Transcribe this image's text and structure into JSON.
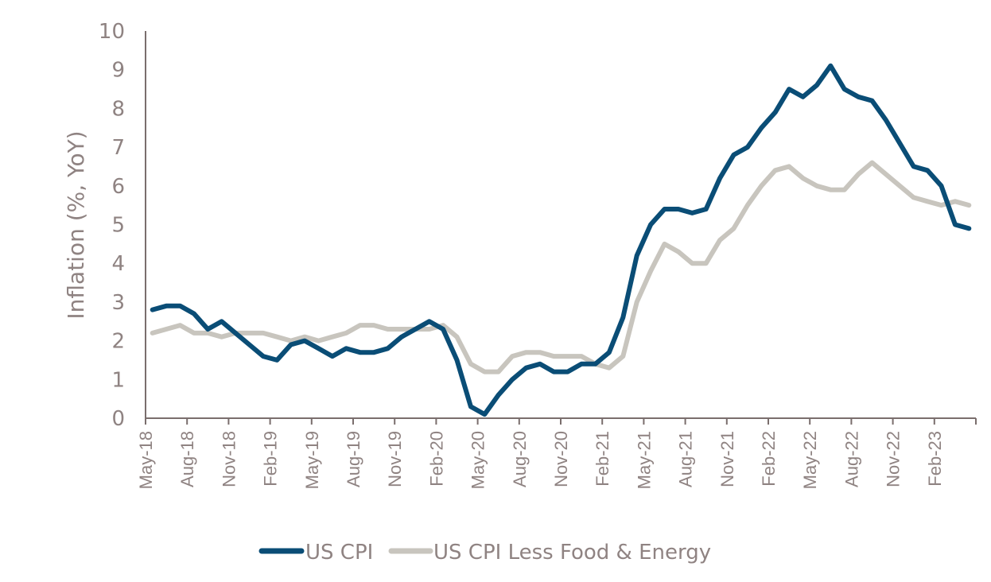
{
  "chart_data": {
    "type": "line",
    "title": "",
    "xlabel": "",
    "ylabel": "Inflation (%, YoY)",
    "ylim": [
      0,
      10
    ],
    "yticks": [
      0,
      1,
      2,
      3,
      4,
      5,
      6,
      7,
      8,
      9,
      10
    ],
    "grid": false,
    "legend_position": "bottom-center",
    "x_start": "May-18",
    "x_end": "May-23",
    "x_tick_interval_months": 3,
    "x_tick_labels": [
      "May-18",
      "Aug-18",
      "Nov-18",
      "Feb-19",
      "May-19",
      "Aug-19",
      "Nov-19",
      "Feb-20",
      "May-20",
      "Aug-20",
      "Nov-20",
      "Feb-21",
      "May-21",
      "Aug-21",
      "Nov-21",
      "Feb-22",
      "May-22",
      "Aug-22",
      "Nov-22",
      "Feb-23",
      ""
    ],
    "x": [
      "May-18",
      "Jun-18",
      "Jul-18",
      "Aug-18",
      "Sep-18",
      "Oct-18",
      "Nov-18",
      "Dec-18",
      "Jan-19",
      "Feb-19",
      "Mar-19",
      "Apr-19",
      "May-19",
      "Jun-19",
      "Jul-19",
      "Aug-19",
      "Sep-19",
      "Oct-19",
      "Nov-19",
      "Dec-19",
      "Jan-20",
      "Feb-20",
      "Mar-20",
      "Apr-20",
      "May-20",
      "Jun-20",
      "Jul-20",
      "Aug-20",
      "Sep-20",
      "Oct-20",
      "Nov-20",
      "Dec-20",
      "Jan-21",
      "Feb-21",
      "Mar-21",
      "Apr-21",
      "May-21",
      "Jun-21",
      "Jul-21",
      "Aug-21",
      "Sep-21",
      "Oct-21",
      "Nov-21",
      "Dec-21",
      "Jan-22",
      "Feb-22",
      "Mar-22",
      "Apr-22",
      "May-22",
      "Jun-22",
      "Jul-22",
      "Aug-22",
      "Sep-22",
      "Oct-22",
      "Nov-22",
      "Dec-22",
      "Jan-23",
      "Feb-23",
      "Mar-23",
      "Apr-23"
    ],
    "series": [
      {
        "name": "US CPI",
        "color": "#0a4d76",
        "values": [
          2.8,
          2.9,
          2.9,
          2.7,
          2.3,
          2.5,
          2.2,
          1.9,
          1.6,
          1.5,
          1.9,
          2.0,
          1.8,
          1.6,
          1.8,
          1.7,
          1.7,
          1.8,
          2.1,
          2.3,
          2.5,
          2.3,
          1.5,
          0.3,
          0.1,
          0.6,
          1.0,
          1.3,
          1.4,
          1.2,
          1.2,
          1.4,
          1.4,
          1.7,
          2.6,
          4.2,
          5.0,
          5.4,
          5.4,
          5.3,
          5.4,
          6.2,
          6.8,
          7.0,
          7.5,
          7.9,
          8.5,
          8.3,
          8.6,
          9.1,
          8.5,
          8.3,
          8.2,
          7.7,
          7.1,
          6.5,
          6.4,
          6.0,
          5.0,
          4.9
        ]
      },
      {
        "name": "US CPI Less Food & Energy",
        "color": "#c8c5be",
        "values": [
          2.2,
          2.3,
          2.4,
          2.2,
          2.2,
          2.1,
          2.2,
          2.2,
          2.2,
          2.1,
          2.0,
          2.1,
          2.0,
          2.1,
          2.2,
          2.4,
          2.4,
          2.3,
          2.3,
          2.3,
          2.3,
          2.4,
          2.1,
          1.4,
          1.2,
          1.2,
          1.6,
          1.7,
          1.7,
          1.6,
          1.6,
          1.6,
          1.4,
          1.3,
          1.6,
          3.0,
          3.8,
          4.5,
          4.3,
          4.0,
          4.0,
          4.6,
          4.9,
          5.5,
          6.0,
          6.4,
          6.5,
          6.2,
          6.0,
          5.9,
          5.9,
          6.3,
          6.6,
          6.3,
          6.0,
          5.7,
          5.6,
          5.5,
          5.6,
          5.5
        ]
      }
    ]
  },
  "colors": {
    "axis": "#7a6e6d",
    "text": "#8f8382"
  }
}
